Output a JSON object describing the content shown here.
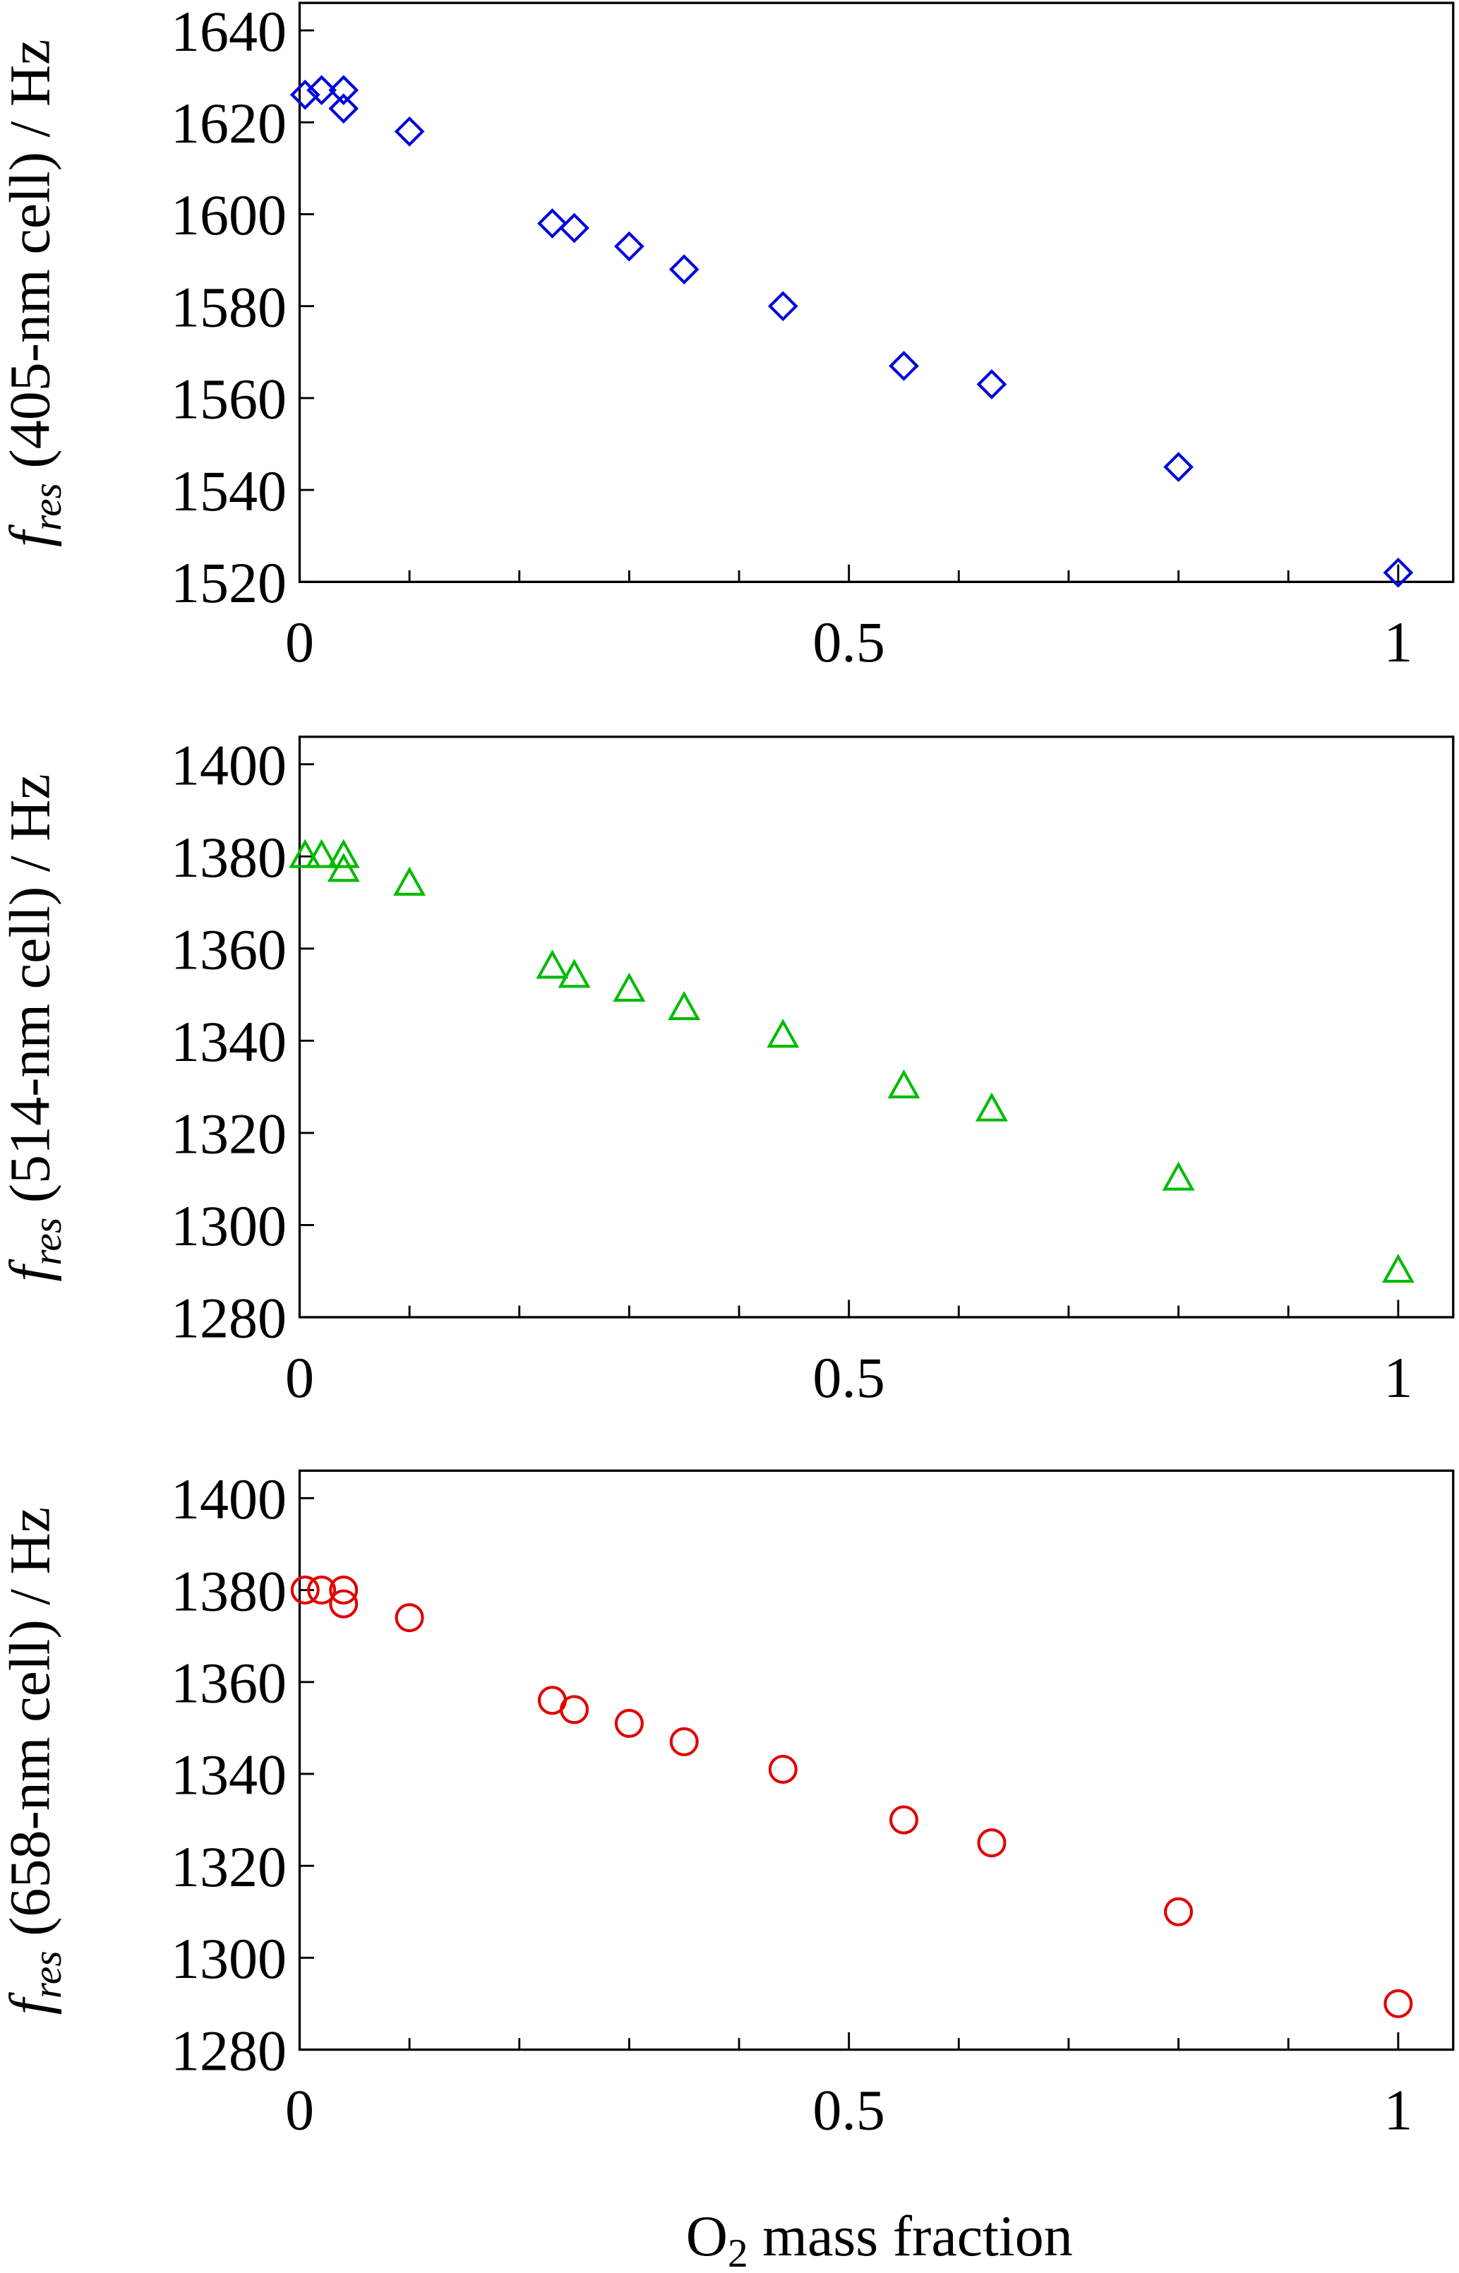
{
  "chart_data": [
    {
      "type": "scatter",
      "marker": "diamond",
      "color": "#0000dd",
      "ylabel_symbol": "f",
      "ylabel_subscript": "res",
      "ylabel_text": " (405-nm cell) / Hz",
      "x": [
        0.005,
        0.02,
        0.04,
        0.04,
        0.1,
        0.23,
        0.25,
        0.3,
        0.35,
        0.44,
        0.55,
        0.63,
        0.8,
        1
      ],
      "values": [
        1626,
        1627,
        1627,
        1623,
        1618,
        1598,
        1597,
        1593,
        1588,
        1580,
        1567,
        1563,
        1545,
        1522
      ],
      "xlim": [
        0,
        1
      ],
      "xticks": [
        0,
        0.5,
        1
      ],
      "xminorticks": [
        0.1,
        0.2,
        0.3,
        0.4,
        0.6,
        0.7,
        0.8,
        0.9
      ],
      "ylim": [
        1520,
        1640
      ],
      "yticks": [
        1520,
        1540,
        1560,
        1580,
        1600,
        1620,
        1640
      ]
    },
    {
      "type": "scatter",
      "marker": "triangle",
      "color": "#00bb00",
      "ylabel_symbol": "f",
      "ylabel_subscript": "res",
      "ylabel_text": " (514-nm cell) / Hz",
      "x": [
        0.005,
        0.02,
        0.04,
        0.04,
        0.1,
        0.23,
        0.25,
        0.3,
        0.35,
        0.44,
        0.55,
        0.63,
        0.8,
        1
      ],
      "values": [
        1380,
        1380,
        1380,
        1377,
        1374,
        1356,
        1354,
        1351,
        1347,
        1341,
        1330,
        1325,
        1310,
        1290
      ],
      "xlim": [
        0,
        1
      ],
      "xticks": [
        0,
        0.5,
        1
      ],
      "xminorticks": [
        0.1,
        0.2,
        0.3,
        0.4,
        0.6,
        0.7,
        0.8,
        0.9
      ],
      "ylim": [
        1280,
        1400
      ],
      "yticks": [
        1280,
        1300,
        1320,
        1340,
        1360,
        1380,
        1400
      ]
    },
    {
      "type": "scatter",
      "marker": "circle",
      "color": "#e00000",
      "ylabel_symbol": "f",
      "ylabel_subscript": "res",
      "ylabel_text": " (658-nm cell) / Hz",
      "xlabel_base": "O",
      "xlabel_subscript": "2",
      "xlabel_rest": " mass fraction",
      "x": [
        0.005,
        0.02,
        0.04,
        0.04,
        0.1,
        0.23,
        0.25,
        0.3,
        0.35,
        0.44,
        0.55,
        0.63,
        0.8,
        1
      ],
      "values": [
        1380,
        1380,
        1380,
        1377,
        1374,
        1356,
        1354,
        1351,
        1347,
        1341,
        1330,
        1325,
        1310,
        1290
      ],
      "xlim": [
        0,
        1
      ],
      "xticks": [
        0,
        0.5,
        1
      ],
      "xminorticks": [
        0.1,
        0.2,
        0.3,
        0.4,
        0.6,
        0.7,
        0.8,
        0.9
      ],
      "ylim": [
        1280,
        1400
      ],
      "yticks": [
        1280,
        1300,
        1320,
        1340,
        1360,
        1380,
        1400
      ]
    }
  ]
}
